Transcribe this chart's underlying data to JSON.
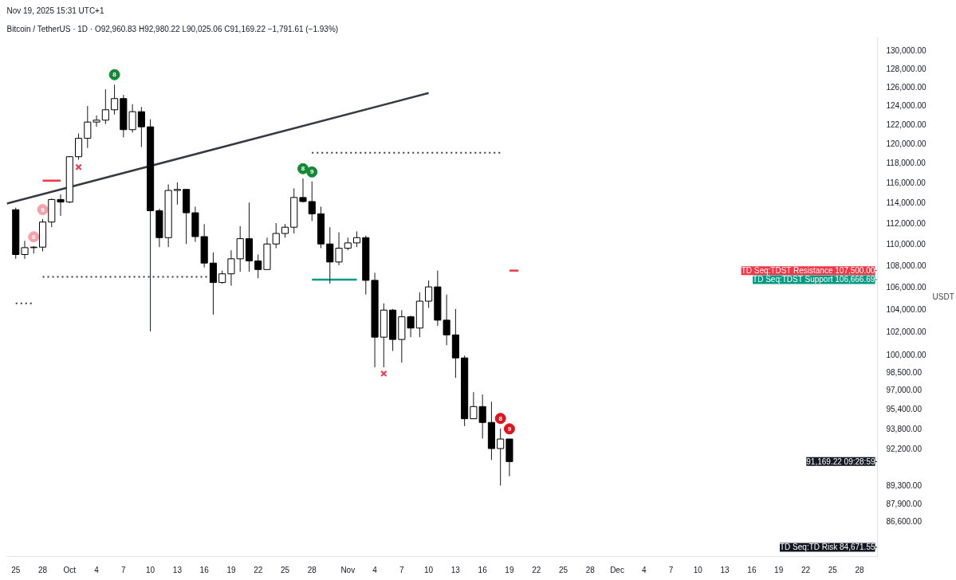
{
  "chart_data": {
    "type": "candlestick",
    "title": "Bitcoin / TetherUS · 1D · O92,960.83 H92,980.22 L90,025.06 C91,169.22 −1,791.61 (−1.93%)",
    "ylabel": "USDT",
    "annotations": [
      "Nov 19, 2025 15:31 UTC+1",
      {
        "text": "8",
        "x": "2025-10-06",
        "y": 127300
      },
      {
        "text": "8",
        "x": "2025-10-27",
        "y": 117380
      },
      {
        "text": "9",
        "x": "2025-10-28",
        "y": 117050
      },
      {
        "text": "8",
        "x": "2025-09-27",
        "y": 110680
      },
      {
        "text": "9",
        "x": "2025-09-28",
        "y": 113310
      },
      {
        "text": "8",
        "x": "2025-11-18",
        "y": 94630
      },
      {
        "text": "9",
        "x": "2025-11-19",
        "y": 93780
      }
    ],
    "ref_lines": [
      {
        "axis": "y",
        "value": 107500,
        "label": "TD Seq:TDST Resistance 107,500.00",
        "color": "#f23645"
      },
      {
        "axis": "y",
        "value": 106666.69,
        "label": "TD Seq:TDST Support 106,666.69",
        "color": "#089981"
      },
      {
        "axis": "y",
        "value": 91169.22,
        "label": "91,169.22 09:28:59",
        "color": "#131722"
      },
      {
        "axis": "y",
        "value": 84671.55,
        "label": "TD Seq:TD Risk 84,671.55",
        "color": "#131722"
      }
    ],
    "x": [
      "2025-09-25",
      "2025-09-26",
      "2025-09-27",
      "2025-09-28",
      "2025-09-29",
      "2025-09-30",
      "2025-10-01",
      "2025-10-02",
      "2025-10-03",
      "2025-10-04",
      "2025-10-05",
      "2025-10-06",
      "2025-10-07",
      "2025-10-08",
      "2025-10-09",
      "2025-10-10",
      "2025-10-11",
      "2025-10-12",
      "2025-10-13",
      "2025-10-14",
      "2025-10-15",
      "2025-10-16",
      "2025-10-17",
      "2025-10-18",
      "2025-10-19",
      "2025-10-20",
      "2025-10-21",
      "2025-10-22",
      "2025-10-23",
      "2025-10-24",
      "2025-10-25",
      "2025-10-26",
      "2025-10-27",
      "2025-10-28",
      "2025-10-29",
      "2025-10-30",
      "2025-10-31",
      "2025-11-01",
      "2025-11-02",
      "2025-11-03",
      "2025-11-04",
      "2025-11-05",
      "2025-11-06",
      "2025-11-07",
      "2025-11-08",
      "2025-11-09",
      "2025-11-10",
      "2025-11-11",
      "2025-11-12",
      "2025-11-13",
      "2025-11-14",
      "2025-11-15",
      "2025-11-16",
      "2025-11-17",
      "2025-11-18",
      "2025-11-19"
    ],
    "ohlc": [
      [
        113300,
        113500,
        108600,
        109000
      ],
      [
        109000,
        110300,
        108600,
        109650
      ],
      [
        109650,
        109800,
        109100,
        109700
      ],
      [
        109700,
        112400,
        109300,
        112100
      ],
      [
        112100,
        114400,
        111600,
        114300
      ],
      [
        114300,
        114800,
        112700,
        114050
      ],
      [
        114050,
        118650,
        113950,
        118600
      ],
      [
        118600,
        121000,
        118300,
        120500
      ],
      [
        120500,
        123900,
        119500,
        122200
      ],
      [
        122200,
        122900,
        121700,
        122400
      ],
      [
        122400,
        125700,
        122000,
        123500
      ],
      [
        123500,
        126200,
        123000,
        124700
      ],
      [
        124700,
        125100,
        120600,
        121400
      ],
      [
        121400,
        124100,
        121100,
        123300
      ],
      [
        123300,
        123800,
        119600,
        121700
      ],
      [
        121700,
        122500,
        102000,
        113200
      ],
      [
        113200,
        113400,
        109700,
        110600
      ],
      [
        110600,
        115800,
        109700,
        115200
      ],
      [
        115200,
        116000,
        113800,
        115300
      ],
      [
        115300,
        115300,
        110000,
        113000
      ],
      [
        113000,
        113600,
        110200,
        110700
      ],
      [
        110700,
        111900,
        107800,
        108200
      ],
      [
        108200,
        109200,
        103500,
        106400
      ],
      [
        106400,
        107500,
        106300,
        107200
      ],
      [
        107200,
        109400,
        106100,
        108600
      ],
      [
        108600,
        111700,
        107400,
        110500
      ],
      [
        110500,
        114000,
        107400,
        108400
      ],
      [
        108400,
        109000,
        106800,
        107600
      ],
      [
        107600,
        110600,
        107600,
        110000
      ],
      [
        110000,
        112000,
        109600,
        111000
      ],
      [
        111000,
        111900,
        110600,
        111600
      ],
      [
        111600,
        115400,
        111000,
        114500
      ],
      [
        114500,
        116400,
        114000,
        114100
      ],
      [
        114100,
        116100,
        112200,
        112900
      ],
      [
        112900,
        113600,
        109600,
        110000
      ],
      [
        110000,
        111600,
        106300,
        108300
      ],
      [
        108300,
        111100,
        108000,
        109600
      ],
      [
        109600,
        110600,
        109400,
        110100
      ],
      [
        110100,
        111200,
        109700,
        110600
      ],
      [
        110600,
        110800,
        105300,
        106600
      ],
      [
        106600,
        107300,
        98900,
        101500
      ],
      [
        101500,
        104500,
        98900,
        103900
      ],
      [
        103900,
        104000,
        100300,
        101300
      ],
      [
        101300,
        103900,
        99300,
        103300
      ],
      [
        103300,
        103400,
        101500,
        102300
      ],
      [
        102300,
        105500,
        101500,
        104700
      ],
      [
        104700,
        106600,
        104100,
        106000
      ],
      [
        106000,
        107500,
        102500,
        103000
      ],
      [
        103000,
        105300,
        100800,
        101700
      ],
      [
        101700,
        104000,
        98000,
        99700
      ],
      [
        99700,
        99900,
        94000,
        94600
      ],
      [
        94600,
        96800,
        94600,
        95600
      ],
      [
        95600,
        96600,
        93000,
        94300
      ],
      [
        94300,
        96000,
        91300,
        92200
      ],
      [
        92200,
        93800,
        89300,
        92960
      ],
      [
        92960.83,
        92980.22,
        90025.06,
        91169.22
      ]
    ],
    "series": [
      {
        "type": "line",
        "color": "#363a45",
        "line_style": "solid",
        "x": [
          "2025-09-24",
          "2025-11-10"
        ],
        "values": [
          113900,
          125300
        ]
      },
      {
        "type": "line",
        "color": "#363a45",
        "line_style": "dotted",
        "x": [
          "2025-10-28",
          "2025-11-18"
        ],
        "values": [
          119000,
          119000
        ]
      },
      {
        "type": "line",
        "color": "#363a45",
        "line_style": "dotted",
        "x": [
          "2025-09-28",
          "2025-10-18"
        ],
        "values": [
          106930,
          106930
        ]
      },
      {
        "type": "line",
        "color": "#363a45",
        "line_style": "dotted",
        "x": [
          "2025-09-25",
          "2025-09-27"
        ],
        "values": [
          104500,
          104500
        ]
      },
      {
        "type": "line",
        "color": "#f23645",
        "line_style": "solid",
        "x": [
          "2025-09-28",
          "2025-09-30"
        ],
        "values": [
          116170,
          116170
        ]
      },
      {
        "type": "line",
        "color": "#089981",
        "line_style": "solid",
        "x": [
          "2025-10-28",
          "2025-11-02"
        ],
        "values": [
          106666.69,
          106666.69
        ]
      },
      {
        "type": "line",
        "color": "#f23645",
        "line_style": "solid",
        "x": [
          "2025-11-19",
          "2025-11-20"
        ],
        "values": [
          107500,
          107500
        ]
      },
      {
        "type": "scatter",
        "marker": "cross",
        "color": "#f23645",
        "x": [
          "2025-10-02",
          "2025-11-05"
        ],
        "values": [
          117540,
          98360
        ]
      },
      {
        "type": "scatter",
        "marker": "circle",
        "color": "#138a36",
        "x": [
          "2025-10-06",
          "2025-10-27",
          "2025-10-28"
        ],
        "values": [
          127300,
          117380,
          117050
        ]
      },
      {
        "type": "scatter",
        "marker": "circle",
        "color": "#f7a1a8",
        "x": [
          "2025-09-27",
          "2025-09-28"
        ],
        "values": [
          110680,
          113310
        ]
      },
      {
        "type": "scatter",
        "marker": "circle",
        "color": "#e0141e",
        "x": [
          "2025-11-18",
          "2025-11-19"
        ],
        "values": [
          94630,
          93780
        ]
      }
    ],
    "log": "y",
    "grid": false,
    "xlim": [
      "2025-09-24",
      "2025-12-30"
    ],
    "xticks": [
      {
        "value": "2025-09-25",
        "label": "25"
      },
      {
        "value": "2025-09-28",
        "label": "28"
      },
      {
        "value": "2025-10-01",
        "label": "Oct"
      },
      {
        "value": "2025-10-04",
        "label": "4"
      },
      {
        "value": "2025-10-07",
        "label": "7"
      },
      {
        "value": "2025-10-10",
        "label": "10"
      },
      {
        "value": "2025-10-13",
        "label": "13"
      },
      {
        "value": "2025-10-16",
        "label": "16"
      },
      {
        "value": "2025-10-19",
        "label": "19"
      },
      {
        "value": "2025-10-22",
        "label": "22"
      },
      {
        "value": "2025-10-25",
        "label": "25"
      },
      {
        "value": "2025-10-28",
        "label": "28"
      },
      {
        "value": "2025-11-01",
        "label": "Nov"
      },
      {
        "value": "2025-11-04",
        "label": "4"
      },
      {
        "value": "2025-11-07",
        "label": "7"
      },
      {
        "value": "2025-11-10",
        "label": "10"
      },
      {
        "value": "2025-11-13",
        "label": "13"
      },
      {
        "value": "2025-11-16",
        "label": "16"
      },
      {
        "value": "2025-11-19",
        "label": "19"
      },
      {
        "value": "2025-11-22",
        "label": "22"
      },
      {
        "value": "2025-11-25",
        "label": "25"
      },
      {
        "value": "2025-11-28",
        "label": "28"
      },
      {
        "value": "2025-12-01",
        "label": "Dec"
      },
      {
        "value": "2025-12-04",
        "label": "4"
      },
      {
        "value": "2025-12-07",
        "label": "7"
      },
      {
        "value": "2025-12-10",
        "label": "10"
      },
      {
        "value": "2025-12-13",
        "label": "13"
      },
      {
        "value": "2025-12-16",
        "label": "16"
      },
      {
        "value": "2025-12-19",
        "label": "19"
      },
      {
        "value": "2025-12-22",
        "label": "22"
      },
      {
        "value": "2025-12-25",
        "label": "25"
      },
      {
        "value": "2025-12-28",
        "label": "28"
      }
    ],
    "ylim": [
      84000,
      131500
    ],
    "yticks": [
      {
        "value": 130000,
        "label": "130,000.00"
      },
      {
        "value": 128000,
        "label": "128,000.00"
      },
      {
        "value": 126000,
        "label": "126,000.00"
      },
      {
        "value": 124000,
        "label": "124,000.00"
      },
      {
        "value": 122000,
        "label": "122,000.00"
      },
      {
        "value": 120000,
        "label": "120,000.00"
      },
      {
        "value": 118000,
        "label": "118,000.00"
      },
      {
        "value": 116000,
        "label": "116,000.00"
      },
      {
        "value": 114000,
        "label": "114,000.00"
      },
      {
        "value": 112000,
        "label": "112,000.00"
      },
      {
        "value": 110000,
        "label": "110,000.00"
      },
      {
        "value": 108000,
        "label": "108,000.00"
      },
      {
        "value": 106000,
        "label": "106,000.00"
      },
      {
        "value": 104000,
        "label": "104,000.00"
      },
      {
        "value": 102000,
        "label": "102,000.00"
      },
      {
        "value": 100000,
        "label": "100,000.00"
      },
      {
        "value": 98500,
        "label": "98,500.00"
      },
      {
        "value": 97000,
        "label": "97,000.00"
      },
      {
        "value": 95400,
        "label": "95,400.00"
      },
      {
        "value": 93800,
        "label": "93,800.00"
      },
      {
        "value": 92200,
        "label": "92,200.00"
      },
      {
        "value": 89300,
        "label": "89,300.00"
      },
      {
        "value": 87900,
        "label": "87,900.00"
      },
      {
        "value": 86600,
        "label": "86,600.00"
      }
    ]
  }
}
